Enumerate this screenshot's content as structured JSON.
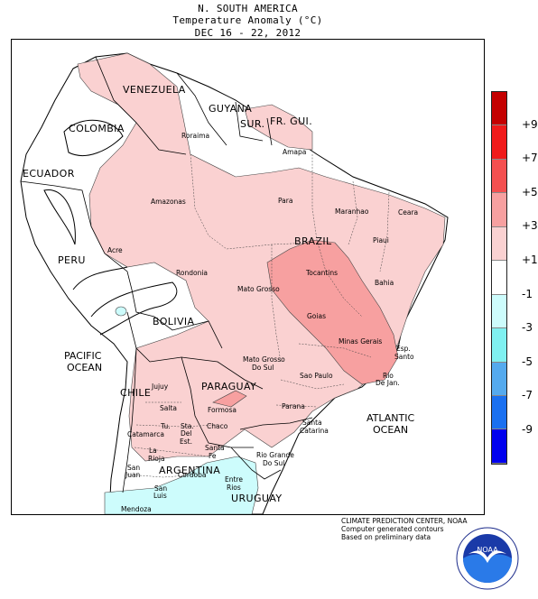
{
  "header": {
    "line1": "N. SOUTH AMERICA",
    "line2": "Temperature Anomaly (°C)",
    "line3": "DEC 16 - 22, 2012"
  },
  "map": {
    "countries": [
      "VENEZUELA",
      "GUYANA",
      "SUR.",
      "FR. GUI.",
      "COLOMBIA",
      "ECUADOR",
      "PERU",
      "BRAZIL",
      "BOLIVIA",
      "PARAGUAY",
      "CHILE",
      "ARGENTINA",
      "URUGUAY"
    ],
    "oceans": {
      "pacific_1": "PACIFIC",
      "pacific_2": "OCEAN",
      "atlantic_1": "ATLANTIC",
      "atlantic_2": "OCEAN"
    },
    "states": {
      "roraima": "Roraima",
      "amapa": "Amapa",
      "para": "Para",
      "amazonas": "Amazonas",
      "maranhao": "Maranhao",
      "ceara": "Ceara",
      "piaui": "Piaui",
      "acre": "Acre",
      "rondonia": "Rondonia",
      "tocantins": "Tocantins",
      "bahia": "Bahia",
      "mato_grosso": "Mato Grosso",
      "goias": "Goias",
      "minas_gerais": "Minas Gerais",
      "esp_santo_1": "Esp.",
      "esp_santo_2": "Santo",
      "mgs_1": "Mato Grosso",
      "mgs_2": "Do Sul",
      "sao_paulo": "Sao Paulo",
      "rio_1": "Rio",
      "rio_2": "De Jan.",
      "parana": "Parana",
      "santa_catarina_1": "Santa",
      "santa_catarina_2": "Catarina",
      "rgs_1": "Rio Grande",
      "rgs_2": "Do Sul",
      "jujuy": "Jujuy",
      "salta": "Salta",
      "formosa": "Formosa",
      "chaco": "Chaco",
      "tucuman": "Tu.",
      "catamarca": "Catamarca",
      "sde_1": "Sta.",
      "sde_2": "Del",
      "sde_3": "Est.",
      "santa_fe_1": "Santa",
      "santa_fe_2": "Fe",
      "la_rioja_1": "La",
      "la_rioja_2": "Rioja",
      "san_juan_1": "San",
      "san_juan_2": "Juan",
      "cordoba": "Cordoba",
      "san_luis_1": "San",
      "san_luis_2": "Luis",
      "entre_rios_1": "Entre",
      "entre_rios_2": "Rios",
      "mendoza": "Mendoza"
    }
  },
  "legend": {
    "colors": [
      "#c40000",
      "#f01a1a",
      "#f45050",
      "#f7a0a0",
      "#fad1d1",
      "#ffffff",
      "#cdfcfc",
      "#7ff0f0",
      "#55aaee",
      "#1a70f0",
      "#0000ee"
    ],
    "ticks": [
      "+9",
      "+7",
      "+5",
      "+3",
      "+1",
      "-1",
      "-3",
      "-5",
      "-7",
      "-9"
    ]
  },
  "credits": {
    "line1": "CLIMATE PREDICTION CENTER, NOAA",
    "line2": "Computer generated contours",
    "line3": "Based on preliminary data"
  },
  "logo": {
    "text": "NOAA",
    "icon": "noaa-seal-icon"
  }
}
